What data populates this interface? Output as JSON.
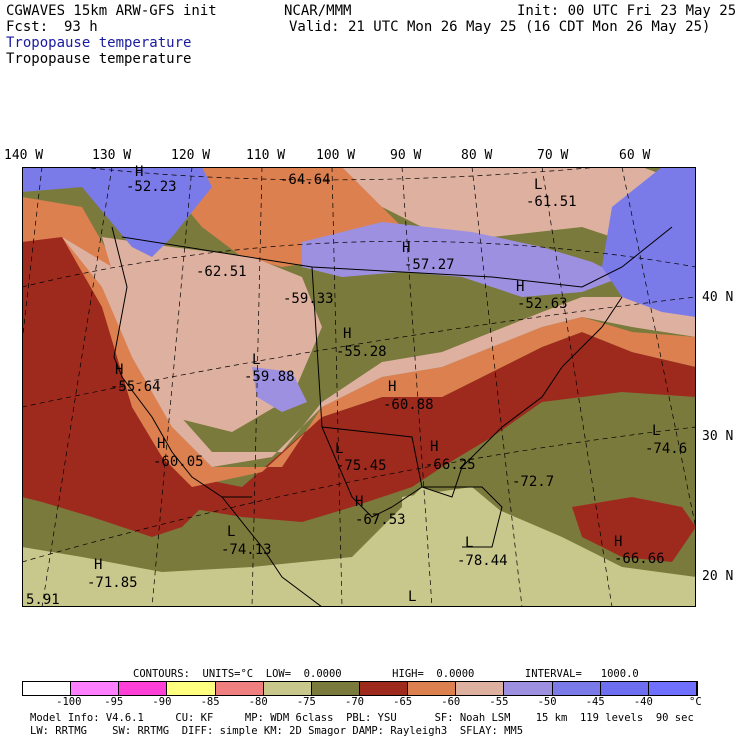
{
  "header": {
    "model": "CGWAVES 15km ARW-GFS init",
    "fcst_label": "Fcst:",
    "fcst_value": "93 h",
    "center": "NCAR/MMM",
    "init": "Init: 00 UTC Fri 23 May 25",
    "valid": "Valid: 21 UTC Mon 26 May 25 (16 CDT Mon 26 May 25)",
    "field_blue": "Tropopause temperature",
    "field_black": "Tropopause temperature"
  },
  "axes": {
    "lon_labels": [
      "140 W",
      "130 W",
      "120 W",
      "110 W",
      "100 W",
      "90 W",
      "80 W",
      "70 W",
      "60 W"
    ],
    "lat_labels": [
      "40 N",
      "30 N",
      "20 N"
    ]
  },
  "map_labels": [
    {
      "letter": "H",
      "value": "-52.23"
    },
    {
      "letter": "",
      "value": "-64.64"
    },
    {
      "letter": "L",
      "value": "-61.51"
    },
    {
      "letter": "H",
      "value": "-57.27"
    },
    {
      "letter": "",
      "value": "-62.51"
    },
    {
      "letter": "",
      "value": "-59.33"
    },
    {
      "letter": "H",
      "value": "-52.63"
    },
    {
      "letter": "H",
      "value": "-55.28"
    },
    {
      "letter": "H",
      "value": "-55.64"
    },
    {
      "letter": "L",
      "value": "-59.88"
    },
    {
      "letter": "H",
      "value": "-60.88"
    },
    {
      "letter": "L",
      "value": "-74.6"
    },
    {
      "letter": "H",
      "value": "-60.05"
    },
    {
      "letter": "L",
      "value": "-75.45"
    },
    {
      "letter": "H",
      "value": "-66.25"
    },
    {
      "letter": "",
      "value": "-72.7"
    },
    {
      "letter": "H",
      "value": "-67.53"
    },
    {
      "letter": "L",
      "value": "-74.13"
    },
    {
      "letter": "L",
      "value": "-78.44"
    },
    {
      "letter": "H",
      "value": "-66.66"
    },
    {
      "letter": "H",
      "value": "-71.85"
    },
    {
      "letter": "",
      "value": "5.91"
    },
    {
      "letter": "L",
      "value": ""
    }
  ],
  "contours": {
    "text": "CONTOURS:  UNITS=°C  LOW=  0.0000        HIGH=  0.0000        INTERVAL=   1000.0"
  },
  "colorbar": {
    "unit": "°C",
    "ticks": [
      "-100",
      "-95",
      "-90",
      "-85",
      "-80",
      "-75",
      "-70",
      "-65",
      "-60",
      "-55",
      "-50",
      "-45",
      "-40"
    ],
    "colors": [
      "#ffffff",
      "#ff80ff",
      "#ff40d8",
      "#ffff80",
      "#f08080",
      "#c8c88c",
      "#7a7a3c",
      "#9e2a1e",
      "#dc8050",
      "#ddb0a0",
      "#9e90e0",
      "#7a7ae8",
      "#6e6ef0",
      "#7070ff"
    ]
  },
  "footer": {
    "line1": "Model Info: V4.6.1     CU: KF     MP: WDM 6class  PBL: YSU      SF: Noah LSM    15 km  119 levels  90 sec",
    "line2": "LW: RRTMG    SW: RRTMG  DIFF: simple KM: 2D Smagor DAMP: Rayleigh3  SFLAY: MM5"
  },
  "legend_colors": {
    "olive": "#7a7a3c",
    "khaki": "#c8c88c",
    "brick": "#9e2a1e",
    "orange": "#dc8050",
    "pink": "#ddb0a0",
    "lavender": "#9e90e0",
    "blue": "#7a7ae8"
  }
}
